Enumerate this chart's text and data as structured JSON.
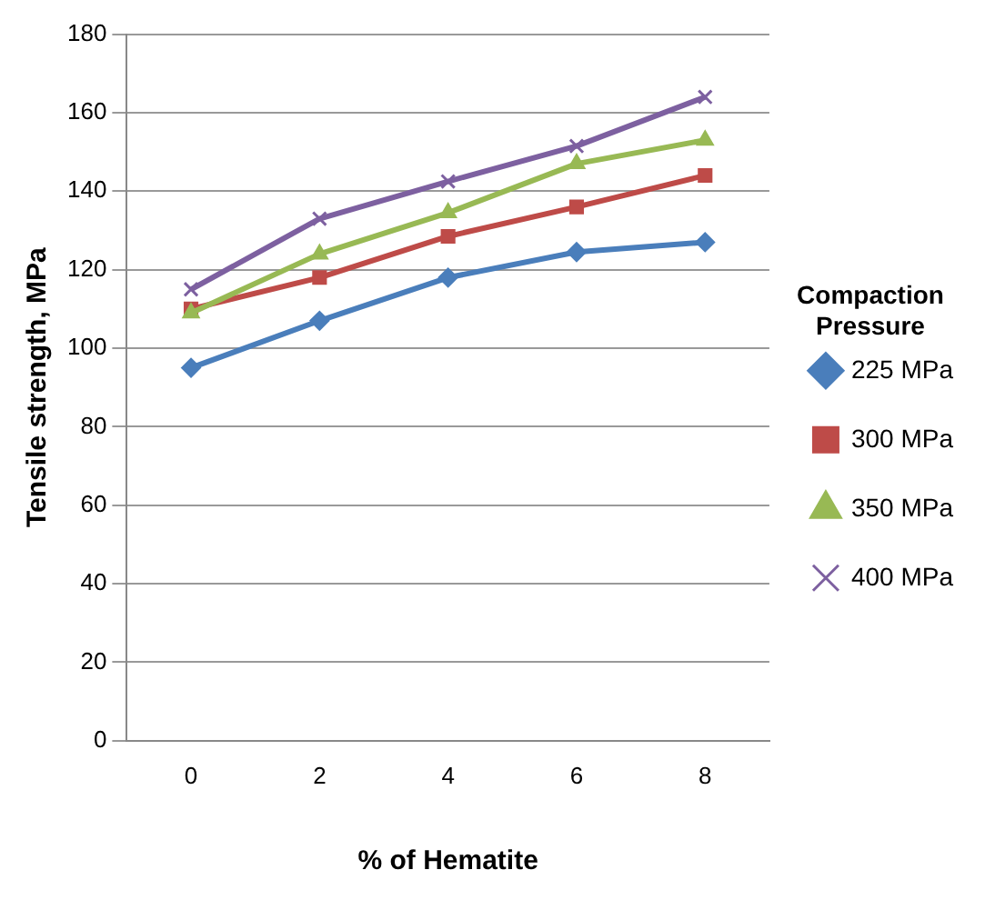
{
  "chart_data": {
    "type": "line",
    "xlabel": "% of Hematite",
    "ylabel": "Tensile strength, MPa",
    "legend_title": "Compaction Pressure",
    "categories": [
      "0",
      "2",
      "4",
      "6",
      "8"
    ],
    "ylim": [
      0,
      180
    ],
    "yticks": [
      0,
      20,
      40,
      60,
      80,
      100,
      120,
      140,
      160,
      180
    ],
    "grid": "y",
    "legend": "right",
    "series": [
      {
        "name": "225 MPa",
        "color": "#4a7ebb",
        "marker": "diamond",
        "values": [
          95,
          107,
          118,
          124.5,
          127
        ]
      },
      {
        "name": "300 MPa",
        "color": "#be4b48",
        "marker": "square",
        "values": [
          110,
          118,
          128.5,
          136,
          144
        ]
      },
      {
        "name": "350 MPa",
        "color": "#98b954",
        "marker": "triangle",
        "values": [
          109,
          124,
          134.5,
          147,
          153
        ]
      },
      {
        "name": "400 MPa",
        "color": "#7d60a0",
        "marker": "cross",
        "values": [
          115,
          133,
          142.5,
          151.5,
          164
        ]
      }
    ]
  }
}
